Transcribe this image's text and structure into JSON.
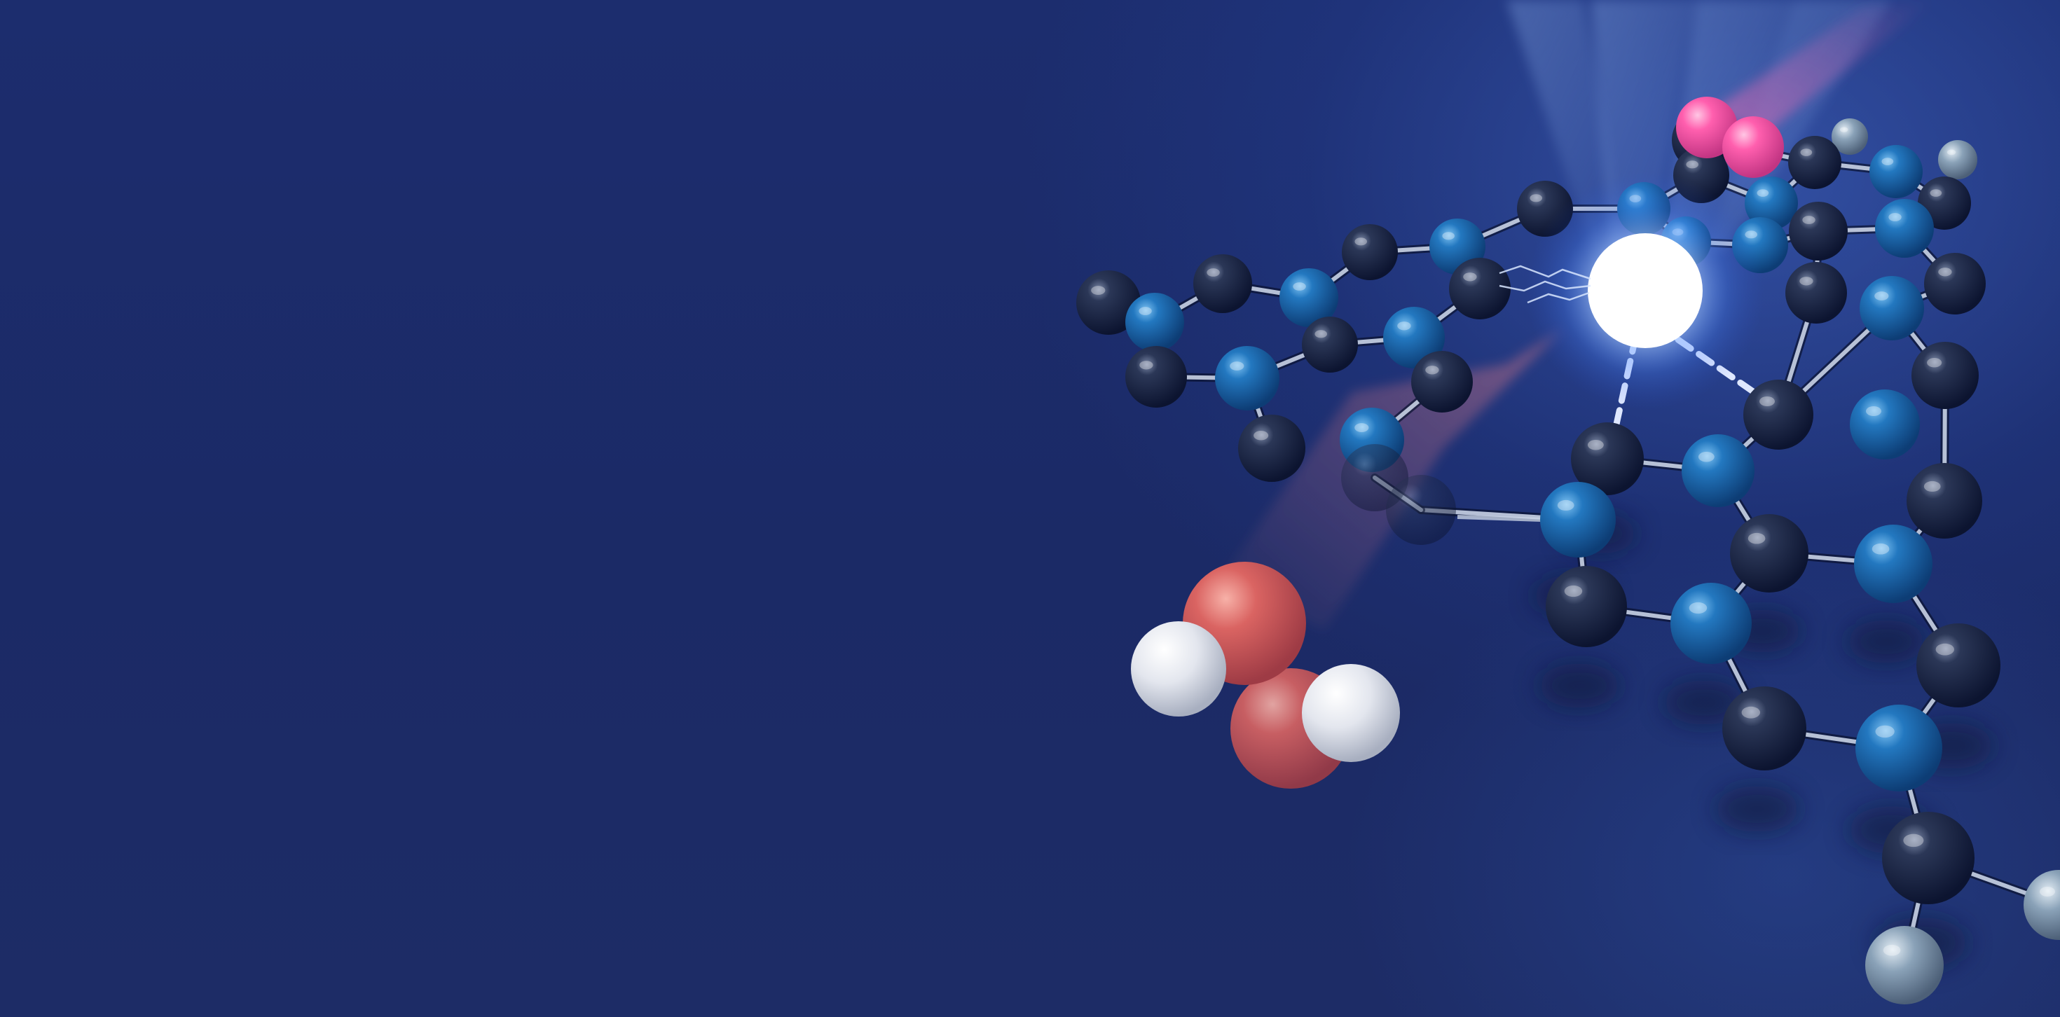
{
  "scene": {
    "subject": "molecular-structure",
    "colors": {
      "background": "#1b2a66",
      "carbon_dark": "#17213f",
      "carbon_blue": "#1f6fb6",
      "glow_atom": "#ffffff",
      "oxygen_red": "#d8605f",
      "hydrogen_white": "#e6e8ee",
      "oxygen_pink": "#ff5fae",
      "terminal_grey": "#8aa2b8",
      "bond": "#c9d3e6"
    }
  }
}
